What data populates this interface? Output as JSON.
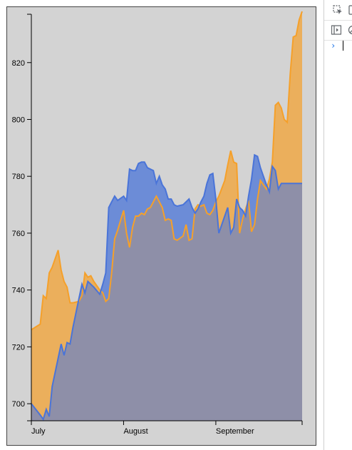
{
  "chart_data": {
    "type": "area",
    "title": "",
    "xlabel": "",
    "ylabel": "",
    "x_ticks": [
      "July",
      "August",
      "September"
    ],
    "y_ticks": [
      700,
      720,
      740,
      760,
      780,
      800,
      820
    ],
    "ylim": [
      694,
      837
    ],
    "xlim": [
      "2012-07-01",
      "2012-09-30"
    ],
    "grid": false,
    "colors": {
      "orange": "#f5a02a",
      "blue": "#4a74d8",
      "background": "#d3d3d3",
      "overlap": "#8e8fa8"
    },
    "series": [
      {
        "color": "orange",
        "x": [
          "2012-07-01",
          "2012-07-04",
          "2012-07-05",
          "2012-07-06",
          "2012-07-07",
          "2012-07-08",
          "2012-07-10",
          "2012-07-11",
          "2012-07-12",
          "2012-07-13",
          "2012-07-14",
          "2012-07-15",
          "2012-07-17",
          "2012-07-18",
          "2012-07-19",
          "2012-07-20",
          "2012-07-21",
          "2012-07-22",
          "2012-07-24",
          "2012-07-25",
          "2012-07-26",
          "2012-07-27",
          "2012-07-28",
          "2012-07-29",
          "2012-07-30",
          "2012-08-01",
          "2012-08-02",
          "2012-08-03",
          "2012-08-04",
          "2012-08-05",
          "2012-08-06",
          "2012-08-07",
          "2012-08-08",
          "2012-08-09",
          "2012-08-10",
          "2012-08-11",
          "2012-08-12",
          "2012-08-13",
          "2012-08-14",
          "2012-08-15",
          "2012-08-16",
          "2012-08-17",
          "2012-08-18",
          "2012-08-19",
          "2012-08-21",
          "2012-08-22",
          "2012-08-23",
          "2012-08-24",
          "2012-08-25",
          "2012-08-26",
          "2012-08-27",
          "2012-08-28",
          "2012-08-29",
          "2012-08-30",
          "2012-08-31",
          "2012-09-01",
          "2012-09-02",
          "2012-09-04",
          "2012-09-05",
          "2012-09-06",
          "2012-09-07",
          "2012-09-08",
          "2012-09-09",
          "2012-09-10",
          "2012-09-11",
          "2012-09-12",
          "2012-09-13",
          "2012-09-14",
          "2012-09-15",
          "2012-09-16",
          "2012-09-18",
          "2012-09-19",
          "2012-09-20",
          "2012-09-21",
          "2012-09-22",
          "2012-09-23",
          "2012-09-24",
          "2012-09-25",
          "2012-09-26",
          "2012-09-27",
          "2012-09-28",
          "2012-09-29",
          "2012-09-30"
        ],
        "values": [
          726,
          728,
          738,
          737,
          746,
          748,
          754,
          747,
          743,
          741,
          735.5,
          735.5,
          736,
          738,
          746,
          744.5,
          745,
          743,
          740,
          739,
          736,
          737,
          746,
          758,
          761,
          768,
          760,
          755,
          762,
          766,
          766,
          767,
          766.5,
          768.5,
          769,
          771,
          773,
          771,
          769,
          764.5,
          765,
          764.5,
          758,
          757.5,
          759,
          763,
          757.5,
          758,
          768.5,
          770,
          769.5,
          770,
          767,
          766.5,
          768,
          771,
          773,
          778.5,
          784,
          789,
          785,
          784.5,
          760,
          765,
          768.5,
          771.5,
          760.5,
          763,
          772,
          778.5,
          775.5,
          779,
          785,
          805,
          806,
          804,
          800,
          799,
          816,
          829,
          829.5,
          835,
          838
        ]
      },
      {
        "color": "blue",
        "x": [
          "2012-07-01",
          "2012-07-04",
          "2012-07-05",
          "2012-07-06",
          "2012-07-07",
          "2012-07-08",
          "2012-07-10",
          "2012-07-11",
          "2012-07-12",
          "2012-07-13",
          "2012-07-14",
          "2012-07-15",
          "2012-07-17",
          "2012-07-18",
          "2012-07-19",
          "2012-07-20",
          "2012-07-21",
          "2012-07-22",
          "2012-07-24",
          "2012-07-25",
          "2012-07-26",
          "2012-07-27",
          "2012-07-28",
          "2012-07-29",
          "2012-07-30",
          "2012-08-01",
          "2012-08-02",
          "2012-08-03",
          "2012-08-04",
          "2012-08-05",
          "2012-08-06",
          "2012-08-07",
          "2012-08-08",
          "2012-08-09",
          "2012-08-10",
          "2012-08-11",
          "2012-08-12",
          "2012-08-13",
          "2012-08-14",
          "2012-08-15",
          "2012-08-16",
          "2012-08-17",
          "2012-08-18",
          "2012-08-19",
          "2012-08-21",
          "2012-08-22",
          "2012-08-23",
          "2012-08-24",
          "2012-08-25",
          "2012-08-26",
          "2012-08-27",
          "2012-08-28",
          "2012-08-29",
          "2012-08-30",
          "2012-08-31",
          "2012-09-01",
          "2012-09-02",
          "2012-09-04",
          "2012-09-05",
          "2012-09-06",
          "2012-09-07",
          "2012-09-08",
          "2012-09-09",
          "2012-09-10",
          "2012-09-11",
          "2012-09-12",
          "2012-09-13",
          "2012-09-14",
          "2012-09-15",
          "2012-09-16",
          "2012-09-18",
          "2012-09-19",
          "2012-09-20",
          "2012-09-21",
          "2012-09-22",
          "2012-09-23",
          "2012-09-24",
          "2012-09-25",
          "2012-09-26",
          "2012-09-27",
          "2012-09-28",
          "2012-09-29",
          "2012-09-30"
        ],
        "values": [
          700,
          696,
          694.5,
          698,
          695.5,
          706,
          716,
          721,
          717,
          721.5,
          721,
          727,
          737,
          742,
          739,
          743,
          742,
          741,
          738.5,
          742,
          746,
          769,
          771,
          773,
          771.5,
          773,
          771.5,
          782.5,
          782,
          782,
          784.5,
          785,
          785,
          783,
          782.5,
          782,
          777.5,
          780,
          777,
          775.5,
          772,
          772,
          770,
          769.5,
          770,
          771,
          772,
          769,
          767,
          768.5,
          771,
          773,
          777.5,
          780.5,
          781,
          772,
          760,
          766,
          769,
          760,
          762,
          772,
          769,
          768,
          766,
          773,
          779,
          787.5,
          787,
          783,
          777,
          774.5,
          783.5,
          782,
          775.5,
          777.5,
          777.5,
          777.5,
          777.5,
          777.5,
          777.5,
          777.5,
          777.5
        ]
      }
    ]
  },
  "devtools": {
    "icons": [
      "inspect-element-icon",
      "device-toggle-icon",
      "sidebar-toggle-icon",
      "clear-console-icon"
    ],
    "prompt_symbol": "›"
  }
}
